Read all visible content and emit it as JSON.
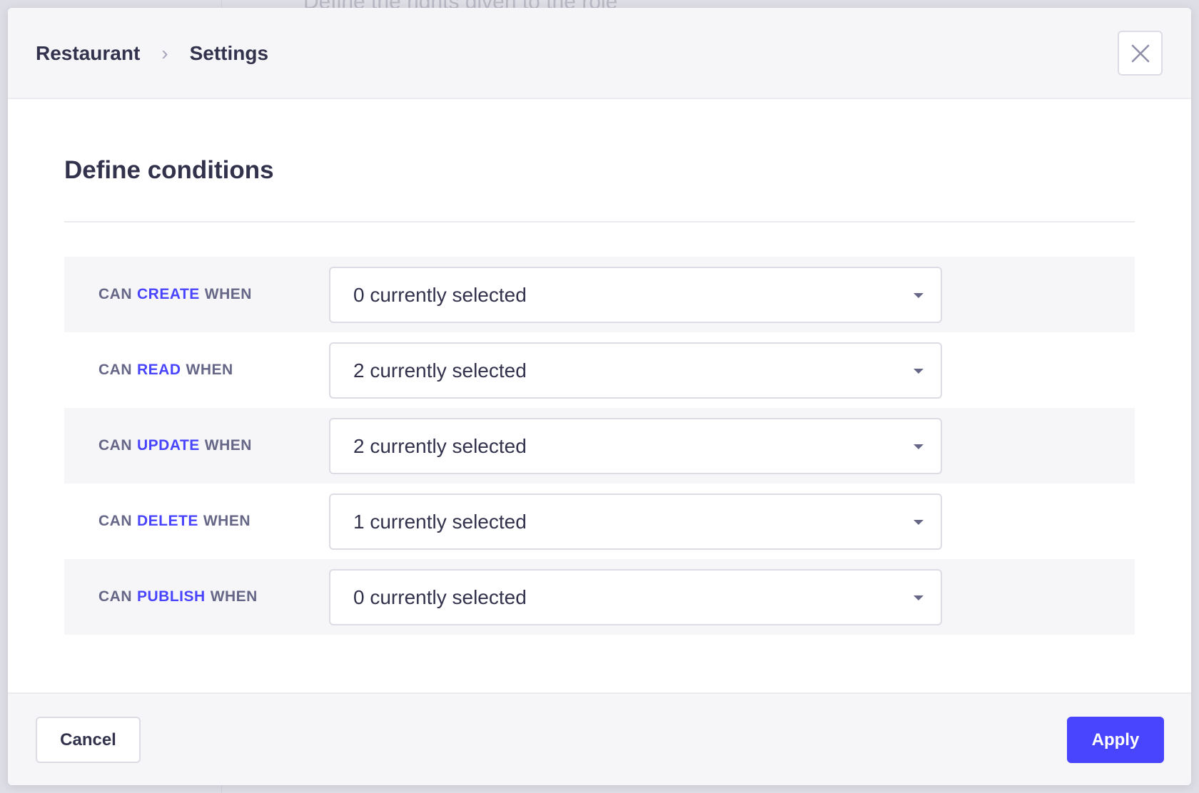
{
  "background": {
    "text": "Define the rights given to the role"
  },
  "breadcrumb": {
    "items": [
      "Restaurant",
      "Settings"
    ],
    "separator": "›"
  },
  "title": "Define conditions",
  "conditions": [
    {
      "prefix": "CAN",
      "action": "CREATE",
      "suffix": "WHEN",
      "value": "0 currently selected"
    },
    {
      "prefix": "CAN",
      "action": "READ",
      "suffix": "WHEN",
      "value": "2 currently selected"
    },
    {
      "prefix": "CAN",
      "action": "UPDATE",
      "suffix": "WHEN",
      "value": "2 currently selected"
    },
    {
      "prefix": "CAN",
      "action": "DELETE",
      "suffix": "WHEN",
      "value": "1 currently selected"
    },
    {
      "prefix": "CAN",
      "action": "PUBLISH",
      "suffix": "WHEN",
      "value": "0 currently selected"
    }
  ],
  "footer": {
    "cancel_label": "Cancel",
    "apply_label": "Apply"
  },
  "colors": {
    "accent": "#4945ff",
    "text": "#32324d",
    "muted": "#666687"
  },
  "icons": {
    "close": "close-icon",
    "caret": "caret-down-icon",
    "separator": "chevron-right-icon"
  }
}
